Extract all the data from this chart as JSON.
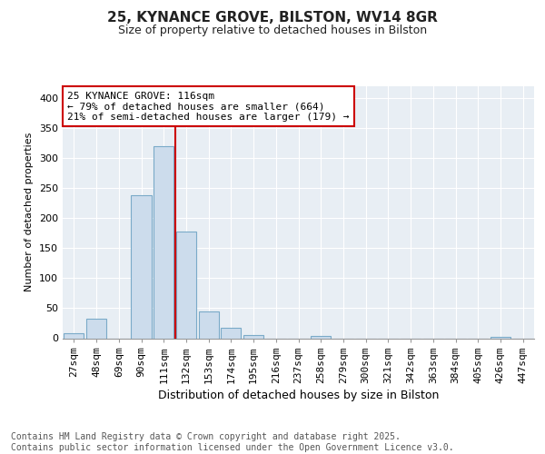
{
  "title_line1": "25, KYNANCE GROVE, BILSTON, WV14 8GR",
  "title_line2": "Size of property relative to detached houses in Bilston",
  "xlabel": "Distribution of detached houses by size in Bilston",
  "ylabel": "Number of detached properties",
  "bar_labels": [
    "27sqm",
    "48sqm",
    "69sqm",
    "90sqm",
    "111sqm",
    "132sqm",
    "153sqm",
    "174sqm",
    "195sqm",
    "216sqm",
    "237sqm",
    "258sqm",
    "279sqm",
    "300sqm",
    "321sqm",
    "342sqm",
    "363sqm",
    "384sqm",
    "405sqm",
    "426sqm",
    "447sqm"
  ],
  "bar_values": [
    8,
    33,
    0,
    238,
    320,
    178,
    45,
    17,
    5,
    0,
    0,
    4,
    0,
    0,
    0,
    0,
    0,
    0,
    0,
    2,
    0
  ],
  "bar_color": "#ccdcec",
  "bar_edge_color": "#7aaac8",
  "red_line_x": 4.5,
  "annotation_line1": "25 KYNANCE GROVE: 116sqm",
  "annotation_line2": "← 79% of detached houses are smaller (664)",
  "annotation_line3": "21% of semi-detached houses are larger (179) →",
  "annotation_box_facecolor": "#ffffff",
  "annotation_box_edgecolor": "#cc0000",
  "red_line_color": "#cc0000",
  "footer_line1": "Contains HM Land Registry data © Crown copyright and database right 2025.",
  "footer_line2": "Contains public sector information licensed under the Open Government Licence v3.0.",
  "plot_bg_color": "#e8eef4",
  "fig_bg_color": "#ffffff",
  "ylim": [
    0,
    420
  ],
  "yticks": [
    0,
    50,
    100,
    150,
    200,
    250,
    300,
    350,
    400
  ],
  "grid_color": "#ffffff",
  "title1_fontsize": 11,
  "title2_fontsize": 9,
  "ylabel_fontsize": 8,
  "xlabel_fontsize": 9,
  "tick_fontsize": 8,
  "footer_fontsize": 7
}
